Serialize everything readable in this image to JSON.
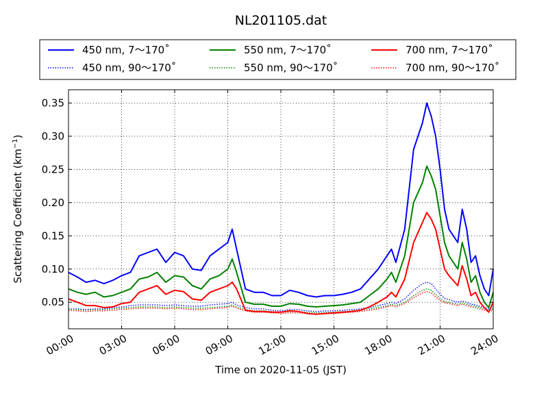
{
  "chart_data": {
    "type": "line",
    "title": "NL201105.dat",
    "xlabel": "Time on 2020-11-05 (JST)",
    "ylabel_main": "Scattering Coefficient (km",
    "ylabel_sup": "−1",
    "ylabel_end": ")",
    "xlim": [
      "00:00",
      "24:00"
    ],
    "ylim": [
      0.01,
      0.37
    ],
    "grid": true,
    "legend_position": "top (above plot, 3 columns)",
    "x_ticks": [
      "00:00",
      "03:00",
      "06:00",
      "09:00",
      "12:00",
      "15:00",
      "18:00",
      "21:00",
      "24:00"
    ],
    "y_ticks": [
      "0.05",
      "0.10",
      "0.15",
      "0.20",
      "0.25",
      "0.30",
      "0.35"
    ],
    "x_unit": "hours",
    "x": [
      0,
      0.5,
      1,
      1.5,
      2,
      2.5,
      3,
      3.5,
      4,
      4.5,
      5,
      5.5,
      6,
      6.5,
      7,
      7.5,
      8,
      8.5,
      9,
      9.25,
      9.5,
      10,
      10.5,
      11,
      11.5,
      12,
      12.5,
      13,
      13.5,
      14,
      14.5,
      15,
      15.5,
      16,
      16.5,
      17,
      17.5,
      18,
      18.25,
      18.5,
      19,
      19.5,
      20,
      20.25,
      20.5,
      20.75,
      21,
      21.25,
      21.5,
      22,
      22.25,
      22.5,
      22.75,
      23,
      23.25,
      23.5,
      23.75,
      24
    ],
    "series": [
      {
        "name": "450 nm, 7～170˚",
        "color": "#0000ff",
        "dash": "solid",
        "values": [
          0.095,
          0.088,
          0.08,
          0.083,
          0.078,
          0.083,
          0.09,
          0.095,
          0.12,
          0.125,
          0.13,
          0.11,
          0.125,
          0.12,
          0.1,
          0.098,
          0.12,
          0.13,
          0.14,
          0.16,
          0.13,
          0.07,
          0.065,
          0.065,
          0.06,
          0.06,
          0.068,
          0.065,
          0.06,
          0.058,
          0.06,
          0.06,
          0.062,
          0.065,
          0.07,
          0.085,
          0.1,
          0.12,
          0.13,
          0.11,
          0.16,
          0.28,
          0.32,
          0.35,
          0.33,
          0.3,
          0.25,
          0.19,
          0.16,
          0.14,
          0.19,
          0.16,
          0.11,
          0.12,
          0.09,
          0.07,
          0.06,
          0.1
        ]
      },
      {
        "name": "450 nm, 90～170˚",
        "color": "#0000ff",
        "dash": "dotted",
        "values": [
          0.04,
          0.04,
          0.039,
          0.04,
          0.04,
          0.042,
          0.043,
          0.045,
          0.046,
          0.046,
          0.046,
          0.045,
          0.046,
          0.045,
          0.044,
          0.044,
          0.046,
          0.047,
          0.048,
          0.05,
          0.046,
          0.042,
          0.04,
          0.04,
          0.038,
          0.037,
          0.039,
          0.039,
          0.037,
          0.036,
          0.037,
          0.037,
          0.038,
          0.039,
          0.04,
          0.042,
          0.045,
          0.048,
          0.05,
          0.048,
          0.055,
          0.068,
          0.078,
          0.08,
          0.078,
          0.07,
          0.062,
          0.056,
          0.054,
          0.05,
          0.052,
          0.05,
          0.047,
          0.046,
          0.044,
          0.042,
          0.04,
          0.043
        ]
      },
      {
        "name": "550 nm, 7～170˚",
        "color": "#008000",
        "dash": "solid",
        "values": [
          0.07,
          0.065,
          0.062,
          0.065,
          0.058,
          0.06,
          0.065,
          0.07,
          0.085,
          0.088,
          0.095,
          0.08,
          0.09,
          0.088,
          0.075,
          0.07,
          0.085,
          0.09,
          0.1,
          0.115,
          0.095,
          0.05,
          0.047,
          0.047,
          0.044,
          0.044,
          0.048,
          0.047,
          0.044,
          0.043,
          0.044,
          0.045,
          0.046,
          0.048,
          0.05,
          0.06,
          0.07,
          0.085,
          0.095,
          0.08,
          0.12,
          0.2,
          0.23,
          0.255,
          0.24,
          0.22,
          0.18,
          0.14,
          0.12,
          0.1,
          0.14,
          0.115,
          0.08,
          0.09,
          0.065,
          0.05,
          0.042,
          0.065
        ]
      },
      {
        "name": "550 nm, 90～170˚",
        "color": "#008000",
        "dash": "dotted",
        "values": [
          0.04,
          0.039,
          0.038,
          0.039,
          0.039,
          0.04,
          0.041,
          0.042,
          0.043,
          0.043,
          0.043,
          0.042,
          0.043,
          0.042,
          0.041,
          0.041,
          0.042,
          0.043,
          0.044,
          0.046,
          0.043,
          0.039,
          0.037,
          0.037,
          0.036,
          0.035,
          0.036,
          0.036,
          0.035,
          0.034,
          0.035,
          0.035,
          0.036,
          0.037,
          0.038,
          0.04,
          0.042,
          0.045,
          0.047,
          0.045,
          0.05,
          0.06,
          0.068,
          0.07,
          0.068,
          0.062,
          0.056,
          0.051,
          0.05,
          0.047,
          0.049,
          0.047,
          0.045,
          0.044,
          0.042,
          0.04,
          0.038,
          0.04
        ]
      },
      {
        "name": "700 nm, 7～170˚",
        "color": "#ff0000",
        "dash": "solid",
        "values": [
          0.055,
          0.05,
          0.045,
          0.045,
          0.042,
          0.043,
          0.048,
          0.05,
          0.065,
          0.07,
          0.075,
          0.062,
          0.068,
          0.066,
          0.055,
          0.053,
          0.065,
          0.07,
          0.075,
          0.08,
          0.07,
          0.038,
          0.036,
          0.036,
          0.035,
          0.035,
          0.037,
          0.036,
          0.033,
          0.032,
          0.033,
          0.034,
          0.035,
          0.036,
          0.038,
          0.043,
          0.05,
          0.058,
          0.065,
          0.058,
          0.085,
          0.14,
          0.17,
          0.185,
          0.175,
          0.16,
          0.13,
          0.1,
          0.09,
          0.075,
          0.105,
          0.085,
          0.06,
          0.065,
          0.05,
          0.042,
          0.035,
          0.05
        ]
      },
      {
        "name": "700 nm, 90～170˚",
        "color": "#ff0000",
        "dash": "dotted",
        "values": [
          0.038,
          0.037,
          0.036,
          0.037,
          0.037,
          0.038,
          0.039,
          0.04,
          0.041,
          0.041,
          0.041,
          0.04,
          0.041,
          0.04,
          0.039,
          0.039,
          0.04,
          0.041,
          0.042,
          0.044,
          0.041,
          0.037,
          0.035,
          0.035,
          0.034,
          0.033,
          0.034,
          0.034,
          0.033,
          0.032,
          0.033,
          0.033,
          0.034,
          0.035,
          0.036,
          0.038,
          0.04,
          0.043,
          0.045,
          0.043,
          0.048,
          0.057,
          0.064,
          0.066,
          0.064,
          0.058,
          0.053,
          0.049,
          0.048,
          0.045,
          0.047,
          0.045,
          0.043,
          0.042,
          0.04,
          0.038,
          0.036,
          0.038
        ]
      }
    ]
  }
}
